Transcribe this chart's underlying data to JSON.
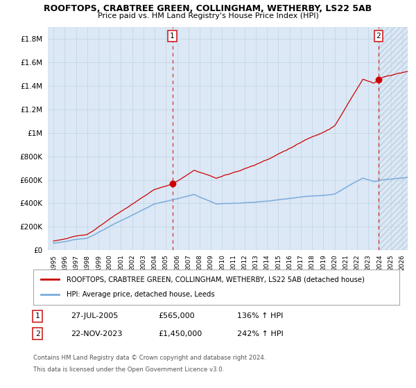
{
  "title": "ROOFTOPS, CRABTREE GREEN, COLLINGHAM, WETHERBY, LS22 5AB",
  "subtitle": "Price paid vs. HM Land Registry's House Price Index (HPI)",
  "legend_label_red": "ROOFTOPS, CRABTREE GREEN, COLLINGHAM, WETHERBY, LS22 5AB (detached house)",
  "legend_label_blue": "HPI: Average price, detached house, Leeds",
  "sale1_date": "27-JUL-2005",
  "sale1_price": 565000,
  "sale1_pct": "136%",
  "sale1_year": 2005.57,
  "sale2_date": "22-NOV-2023",
  "sale2_price": 1450000,
  "sale2_pct": "242%",
  "sale2_year": 2023.9,
  "ylim_max": 1900000,
  "xlim_min": 1994.5,
  "xlim_max": 2026.5,
  "footnote1": "Contains HM Land Registry data © Crown copyright and database right 2024.",
  "footnote2": "This data is licensed under the Open Government Licence v3.0.",
  "bg_color": "#dce8f5",
  "grid_color": "#c8d8e8",
  "fig_color": "#ffffff",
  "red_color": "#cc0000",
  "blue_color": "#7aabdb",
  "hatch_color": "#aaaacc"
}
